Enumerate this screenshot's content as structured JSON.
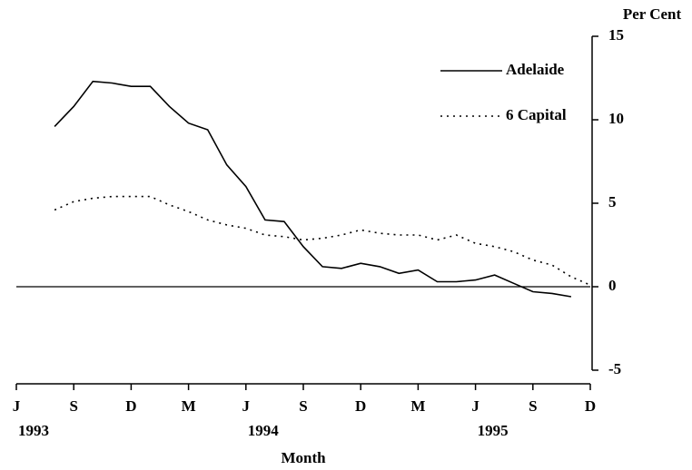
{
  "chart_data": {
    "type": "line",
    "y_axis_label": "Per Cent",
    "x_axis_label": "Month",
    "categories": [
      "J",
      null,
      null,
      "S",
      null,
      null,
      "D",
      null,
      null,
      "M",
      null,
      null,
      "J",
      null,
      null,
      "S",
      null,
      null,
      "D",
      null,
      null,
      "M",
      null,
      null,
      "J",
      null,
      null,
      "S",
      null,
      null,
      "D"
    ],
    "year_labels": [
      "1993",
      null,
      null,
      null,
      null,
      null,
      null,
      null,
      null,
      null,
      null,
      null,
      "1994",
      null,
      null,
      null,
      null,
      null,
      null,
      null,
      null,
      null,
      null,
      null,
      "1995",
      null,
      null,
      null,
      null,
      null,
      null
    ],
    "series": [
      {
        "name": "Adelaide",
        "color": "#000000",
        "dash": "solid",
        "values": [
          null,
          null,
          9.6,
          10.8,
          12.3,
          12.2,
          12.0,
          12.0,
          10.8,
          9.8,
          9.4,
          7.3,
          6.0,
          4.0,
          3.9,
          2.4,
          1.2,
          1.1,
          1.4,
          1.2,
          0.8,
          1.0,
          0.3,
          0.3,
          0.4,
          0.7,
          0.2,
          -0.3,
          -0.4,
          -0.6,
          null
        ]
      },
      {
        "name": "6 Capital",
        "color": "#000000",
        "dash": "dotted",
        "values": [
          null,
          null,
          4.6,
          5.1,
          5.3,
          5.4,
          5.4,
          5.4,
          4.9,
          4.5,
          4.0,
          3.7,
          3.5,
          3.1,
          3.0,
          2.8,
          2.9,
          3.1,
          3.4,
          3.2,
          3.1,
          3.1,
          2.8,
          3.1,
          2.6,
          2.4,
          2.1,
          1.6,
          1.3,
          0.6,
          0.1
        ]
      }
    ],
    "hlines": [
      0
    ],
    "ylim": [
      -5,
      15
    ],
    "yticks": [
      -5,
      0,
      5,
      10,
      15
    ],
    "legend": "top-right"
  }
}
